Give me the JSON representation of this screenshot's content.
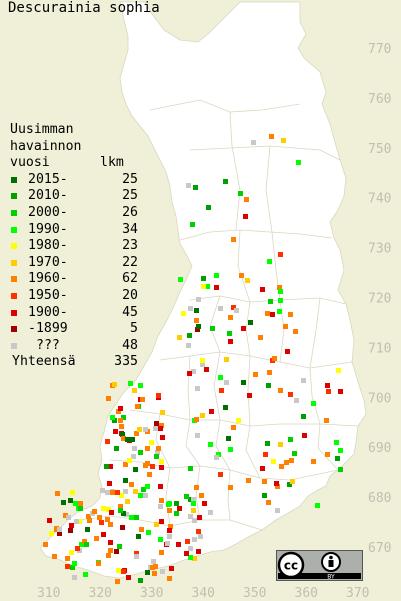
{
  "title": "Descurainia sophia",
  "legend": {
    "header": [
      "Uusimman",
      "havainnon",
      "vuosi"
    ],
    "count_header": "lkm",
    "entries": [
      {
        "label": "2015-",
        "count": "25",
        "color": "#007000"
      },
      {
        "label": "2010-",
        "count": "25",
        "color": "#00a000"
      },
      {
        "label": "2000-",
        "count": "26",
        "color": "#00d000"
      },
      {
        "label": "1990-",
        "count": "34",
        "color": "#00ff00"
      },
      {
        "label": "1980-",
        "count": "23",
        "color": "#ffff00"
      },
      {
        "label": "1970-",
        "count": "22",
        "color": "#ffcc00"
      },
      {
        "label": "1960-",
        "count": "62",
        "color": "#ff8000"
      },
      {
        "label": "1950-",
        "count": "20",
        "color": "#ff3000"
      },
      {
        "label": "1900-",
        "count": "45",
        "color": "#dd0000"
      },
      {
        "label": "-1899",
        "count": "5",
        "color": "#a00000"
      },
      {
        "label": "???",
        "count": "48",
        "color": "#c8c8c8"
      }
    ],
    "total_label": "Yhteensä",
    "total_count": "335"
  },
  "y_axis_labels": [
    "770",
    "760",
    "750",
    "740",
    "730",
    "720",
    "710",
    "700",
    "690",
    "680",
    "670"
  ],
  "x_axis_labels": [
    "310",
    "320",
    "330",
    "340",
    "350",
    "360",
    "370"
  ],
  "license": {
    "cc": "cc",
    "by": "BY",
    "icon": "creative-commons-by-icon"
  },
  "points": [
    [
      5,
      "1980-"
    ],
    [
      12,
      "1960-"
    ],
    [
      13,
      "1980-"
    ],
    [
      14,
      "1990-"
    ],
    [
      17,
      "1950-"
    ],
    [
      18,
      "1900-"
    ],
    [
      19,
      "???"
    ],
    [
      22,
      "1980-"
    ],
    [
      24,
      "1960-"
    ],
    [
      25,
      "1990-"
    ],
    [
      28,
      "2010-"
    ],
    [
      29,
      "???"
    ],
    [
      32,
      "1980-"
    ],
    [
      36,
      "2000-"
    ],
    [
      37,
      "1950-"
    ],
    [
      38,
      "1960-"
    ],
    [
      40,
      "1990-"
    ],
    [
      43,
      "1960-"
    ],
    [
      44,
      "1900-"
    ],
    [
      47,
      "1960-"
    ],
    [
      49,
      "1980-"
    ],
    [
      51,
      "1960-"
    ],
    [
      54,
      "1990-"
    ],
    [
      57,
      "1960-"
    ],
    [
      58,
      "2000-"
    ],
    [
      61,
      "1960-"
    ],
    [
      64,
      "1900-"
    ],
    [
      65,
      "2000-"
    ],
    [
      67,
      "1990-"
    ],
    [
      69,
      "1960-"
    ],
    [
      72,
      "1980-"
    ],
    [
      73,
      "1960-"
    ],
    [
      76,
      "1990-"
    ],
    [
      79,
      "2015-"
    ],
    [
      80,
      "1960-"
    ],
    [
      83,
      "???"
    ],
    [
      84,
      "2000-"
    ],
    [
      86,
      "1970-"
    ],
    [
      88,
      "1960-"
    ],
    [
      90,
      "1990-"
    ],
    [
      93,
      "1960-"
    ],
    [
      95,
      "1900-"
    ],
    [
      97,
      "1990-"
    ],
    [
      98,
      "1960-"
    ],
    [
      101,
      "1980-"
    ],
    [
      102,
      "1950-"
    ],
    [
      104,
      "2010-"
    ],
    [
      106,
      "1960-"
    ],
    [
      109,
      "2000-"
    ],
    [
      112,
      "1970-"
    ],
    [
      113,
      "???"
    ],
    [
      115,
      "1990-"
    ],
    [
      117,
      "1900-"
    ],
    [
      118,
      "1960-"
    ],
    [
      121,
      "1900-"
    ],
    [
      124,
      "1960-"
    ],
    [
      125,
      "2015-"
    ],
    [
      126,
      "1960-"
    ],
    [
      127,
      "2000-"
    ],
    [
      129,
      "1990-"
    ],
    [
      132,
      "???"
    ],
    [
      133,
      "1960-"
    ],
    [
      135,
      "1970-"
    ],
    [
      138,
      "???"
    ],
    [
      140,
      "1990-"
    ],
    [
      141,
      "1960-"
    ],
    [
      143,
      "1900-"
    ],
    [
      146,
      "1960-"
    ],
    [
      147,
      "-1899"
    ],
    [
      149,
      "2010-"
    ],
    [
      152,
      "1950-"
    ],
    [
      153,
      "1990-"
    ],
    [
      155,
      "1960-"
    ],
    [
      158,
      "1900-"
    ],
    [
      160,
      "1970-"
    ],
    [
      162,
      "1950-"
    ],
    [
      164,
      "???"
    ],
    [
      166,
      "1960-"
    ],
    [
      167,
      "1990-"
    ],
    [
      169,
      "1900-"
    ],
    [
      172,
      "2000-"
    ],
    [
      175,
      "1960-"
    ],
    [
      178,
      "1900-"
    ],
    [
      181,
      "2015-"
    ],
    [
      183,
      "1960-"
    ],
    [
      184,
      "???"
    ],
    [
      186,
      "1900-"
    ],
    [
      189,
      "1990-"
    ],
    [
      191,
      "1960-"
    ],
    [
      193,
      "1970-"
    ],
    [
      194,
      "1900-"
    ],
    [
      196,
      "???"
    ],
    [
      198,
      "1950-"
    ],
    [
      199,
      "1960-"
    ],
    [
      201,
      "2010-"
    ],
    [
      202,
      "1990-"
    ],
    [
      204,
      "???"
    ],
    [
      206,
      "1960-"
    ],
    [
      208,
      "1950-"
    ],
    [
      210,
      "1970-"
    ],
    [
      212,
      "2000-"
    ],
    [
      214,
      "1960-"
    ],
    [
      216,
      "1900-"
    ],
    [
      218,
      "???"
    ],
    [
      220,
      "1990-"
    ],
    [
      223,
      "1960-"
    ],
    [
      225,
      "2015-"
    ],
    [
      227,
      "1900-"
    ],
    [
      229,
      "1960-"
    ],
    [
      231,
      "???"
    ],
    [
      233,
      "1980-"
    ],
    [
      235,
      "2010-"
    ],
    [
      236,
      "1900-"
    ],
    [
      238,
      "1960-"
    ],
    [
      241,
      "???"
    ],
    [
      243,
      "1950-"
    ],
    [
      246,
      "1990-"
    ],
    [
      248,
      "1960-"
    ],
    [
      250,
      "2000-"
    ],
    [
      253,
      "???"
    ],
    [
      255,
      "1960-"
    ],
    [
      257,
      "1900-"
    ],
    [
      259,
      "1970-"
    ],
    [
      262,
      "1960-"
    ],
    [
      264,
      "2015-"
    ],
    [
      267,
      "???"
    ],
    [
      269,
      "1900-"
    ],
    [
      272,
      "1960-"
    ],
    [
      275,
      "2000-"
    ],
    [
      277,
      "1980-"
    ],
    [
      279,
      "1960-"
    ],
    [
      282,
      "-1899"
    ],
    [
      284,
      "???"
    ],
    [
      286,
      "1900-"
    ],
    [
      289,
      "1960-"
    ],
    [
      292,
      "1990-"
    ],
    [
      294,
      "1950-"
    ],
    [
      297,
      "1960-"
    ],
    [
      299,
      "2010-"
    ],
    [
      301,
      "???"
    ],
    [
      304,
      "1900-"
    ],
    [
      306,
      "1960-"
    ],
    [
      309,
      "1970-"
    ],
    [
      311,
      "2000-"
    ],
    [
      313,
      "1960-"
    ],
    [
      316,
      "???"
    ],
    [
      318,
      "1950-"
    ],
    [
      320,
      "1900-"
    ],
    [
      322,
      "1960-"
    ],
    [
      325,
      "2015-"
    ],
    [
      327,
      "1990-"
    ],
    [
      329,
      "???"
    ],
    [
      331,
      "1960-"
    ],
    [
      333,
      "1980-"
    ],
    [
      335,
      "1900-"
    ],
    [
      337,
      "1960-"
    ],
    [
      339,
      "-1899"
    ],
    [
      341,
      "2000-"
    ],
    [
      343,
      "???"
    ],
    [
      345,
      "1960-"
    ],
    [
      347,
      "1900-"
    ],
    [
      349,
      "1990-"
    ],
    [
      351,
      "1960-"
    ],
    [
      353,
      "2010-"
    ],
    [
      355,
      "???"
    ],
    [
      357,
      "1950-"
    ],
    [
      359,
      "1960-"
    ],
    [
      361,
      "1900-"
    ],
    [
      363,
      "2015-"
    ],
    [
      365,
      "1970-"
    ],
    [
      367,
      "???"
    ],
    [
      369,
      "1960-"
    ],
    [
      371,
      "1990-"
    ],
    [
      373,
      "1900-"
    ],
    [
      375,
      "2000-"
    ],
    [
      377,
      "1960-"
    ],
    [
      379,
      "???"
    ],
    [
      381,
      "1980-"
    ],
    [
      383,
      "1950-"
    ],
    [
      385,
      "1960-"
    ],
    [
      387,
      "2010-"
    ],
    [
      389,
      "1900-"
    ],
    [
      391,
      "???"
    ],
    [
      393,
      "1960-"
    ],
    [
      395,
      "1990-"
    ],
    [
      397,
      "2015-"
    ],
    [
      399,
      "1900-"
    ],
    [
      401,
      "1960-"
    ],
    [
      403,
      "???"
    ],
    [
      405,
      "1970-"
    ],
    [
      407,
      "2000-"
    ],
    [
      409,
      "1960-"
    ],
    [
      411,
      "1900-"
    ],
    [
      413,
      "1950-"
    ],
    [
      415,
      "???"
    ],
    [
      417,
      "1990-"
    ],
    [
      419,
      "1960-"
    ],
    [
      421,
      "2010-"
    ],
    [
      423,
      "-1899"
    ],
    [
      425,
      "1960-"
    ],
    [
      427,
      "???"
    ],
    [
      429,
      "1900-"
    ],
    [
      431,
      "2015-"
    ],
    [
      433,
      "1980-"
    ],
    [
      435,
      "1960-"
    ],
    [
      437,
      "1990-"
    ],
    [
      439,
      "???"
    ],
    [
      441,
      "1900-"
    ],
    [
      443,
      "2000-"
    ],
    [
      445,
      "1960-"
    ],
    [
      447,
      "1950-"
    ],
    [
      449,
      "1970-"
    ],
    [
      451,
      "???"
    ],
    [
      453,
      "1960-"
    ],
    [
      455,
      "1900-"
    ],
    [
      457,
      "1990-"
    ],
    [
      459,
      "2010-"
    ],
    [
      461,
      "1960-"
    ],
    [
      463,
      "???"
    ],
    [
      465,
      "2015-"
    ],
    [
      467,
      "1900-"
    ],
    [
      469,
      "1960-"
    ],
    [
      471,
      "1980-"
    ],
    [
      473,
      "2000-"
    ],
    [
      475,
      "???"
    ],
    [
      477,
      "1960-"
    ],
    [
      479,
      "1900-"
    ],
    [
      481,
      "1990-"
    ],
    [
      483,
      "1950-"
    ],
    [
      485,
      "1960-"
    ],
    [
      487,
      "???"
    ],
    [
      489,
      "2010-"
    ],
    [
      491,
      "1970-"
    ],
    [
      493,
      "1900-"
    ],
    [
      495,
      "1960-"
    ],
    [
      497,
      "2015-"
    ],
    [
      499,
      "???"
    ],
    [
      501,
      "1990-"
    ],
    [
      503,
      "1960-"
    ],
    [
      505,
      "2000-"
    ],
    [
      507,
      "1900-"
    ],
    [
      509,
      "-1899"
    ],
    [
      511,
      "???"
    ],
    [
      513,
      "1960-"
    ],
    [
      515,
      "1980-"
    ],
    [
      517,
      "1990-"
    ],
    [
      519,
      "1900-"
    ],
    [
      521,
      "2010-"
    ],
    [
      523,
      "1960-"
    ],
    [
      525,
      "???"
    ],
    [
      527,
      "1950-"
    ],
    [
      529,
      "2015-"
    ],
    [
      531,
      "1960-"
    ],
    [
      533,
      "1900-"
    ],
    [
      535,
      "1970-"
    ],
    [
      537,
      "???"
    ],
    [
      539,
      "2000-"
    ],
    [
      541,
      "1990-"
    ],
    [
      543,
      "1960-"
    ],
    [
      545,
      "1900-"
    ],
    [
      547,
      "???"
    ],
    [
      549,
      "2010-"
    ],
    [
      551,
      "1960-"
    ],
    [
      553,
      "1980-"
    ],
    [
      555,
      "2015-"
    ],
    [
      557,
      "1900-"
    ],
    [
      559,
      "???"
    ],
    [
      561,
      "1960-"
    ],
    [
      563,
      "1990-"
    ],
    [
      565,
      "1950-"
    ],
    [
      567,
      "2000-"
    ],
    [
      569,
      "1960-"
    ],
    [
      571,
      "???"
    ],
    [
      573,
      "1900-"
    ],
    [
      575,
      "1970-"
    ],
    [
      577,
      "2010-"
    ],
    [
      579,
      "1960-"
    ],
    [
      581,
      "2015-"
    ],
    [
      583,
      "???"
    ],
    [
      585,
      "1990-"
    ],
    [
      587,
      "1900-"
    ],
    [
      589,
      "1960-"
    ],
    [
      591,
      "1980-"
    ],
    [
      593,
      "2000-"
    ],
    [
      595,
      "???"
    ],
    [
      597,
      "1960-"
    ],
    [
      599,
      "1900-"
    ],
    [
      601,
      "1950-"
    ],
    [
      603,
      "1990-"
    ],
    [
      605,
      "2010-"
    ],
    [
      607,
      "???"
    ],
    [
      609,
      "1960-"
    ],
    [
      611,
      "2015-"
    ],
    [
      613,
      "1900-"
    ],
    [
      615,
      "1970-"
    ],
    [
      617,
      "1960-"
    ],
    [
      619,
      "???"
    ],
    [
      621,
      "2000-"
    ],
    [
      623,
      "1990-"
    ],
    [
      625,
      "1900-"
    ],
    [
      627,
      "1960-"
    ],
    [
      629,
      "-1899"
    ],
    [
      631,
      "???"
    ],
    [
      633,
      "1980-"
    ],
    [
      635,
      "2010-"
    ],
    [
      637,
      "1960-"
    ],
    [
      639,
      "1900-"
    ],
    [
      641,
      "2015-"
    ],
    [
      643,
      "???"
    ],
    [
      645,
      "1950-"
    ],
    [
      647,
      "1960-"
    ],
    [
      649,
      "1990-"
    ],
    [
      651,
      "2000-"
    ],
    [
      653,
      "1900-"
    ],
    [
      655,
      "???"
    ],
    [
      657,
      "1960-"
    ],
    [
      659,
      "1970-"
    ],
    [
      661,
      "2010-"
    ],
    [
      663,
      "1960-"
    ],
    [
      665,
      "???"
    ],
    [
      667,
      "2015-"
    ],
    [
      669,
      "1900-"
    ],
    [
      671,
      "1990-"
    ]
  ]
}
